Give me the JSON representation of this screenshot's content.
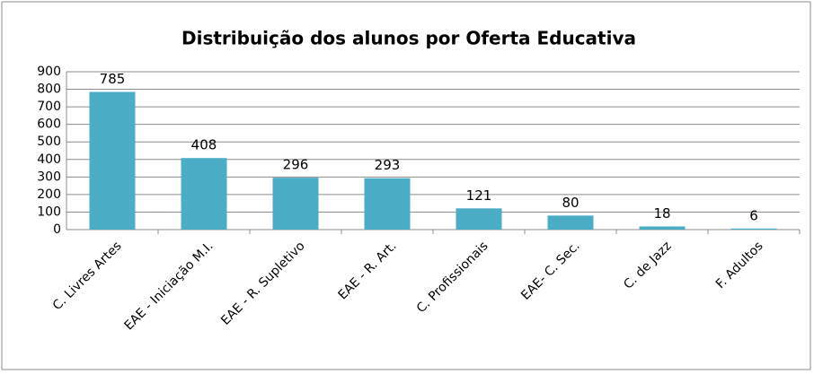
{
  "chart_data": {
    "type": "bar",
    "title": "Distribuição dos alunos por Oferta Educativa",
    "categories": [
      "C. Livres Artes",
      "EAE - Iniciação M.I.",
      "EAE - R. Supletivo",
      "EAE - R. Art.",
      "C. Profissionais",
      "EAE- C. Sec.",
      "C. de Jazz",
      "F. Adultos"
    ],
    "values": [
      785,
      408,
      296,
      293,
      121,
      80,
      18,
      6
    ],
    "color": "#4bacc6",
    "ylim": [
      0,
      900
    ],
    "yticks": [
      0,
      100,
      200,
      300,
      400,
      500,
      600,
      700,
      800,
      900
    ],
    "grid": true
  }
}
